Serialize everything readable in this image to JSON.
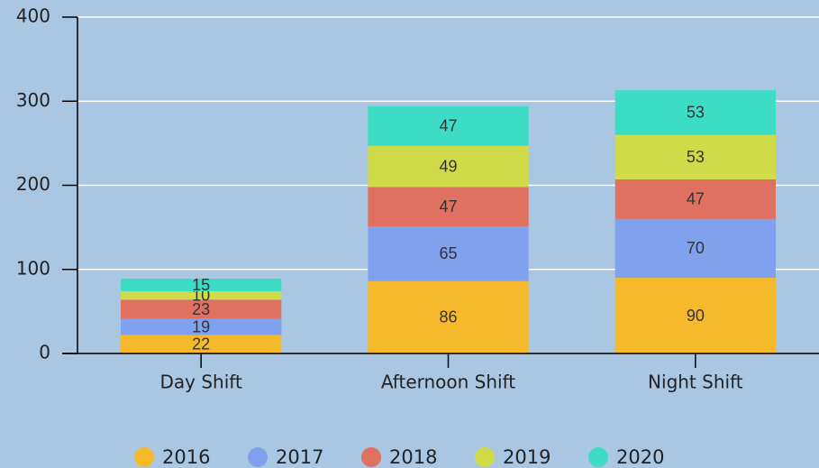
{
  "chart_data": {
    "type": "bar",
    "stacked": true,
    "categories": [
      "Day Shift",
      "Afternoon Shift",
      "Night Shift"
    ],
    "series": [
      {
        "name": "2016",
        "color": "#f6b92b",
        "values": [
          22,
          86,
          90
        ]
      },
      {
        "name": "2017",
        "color": "#7fa1ee",
        "values": [
          19,
          65,
          70
        ]
      },
      {
        "name": "2018",
        "color": "#e07060",
        "values": [
          23,
          47,
          47
        ]
      },
      {
        "name": "2019",
        "color": "#cfdb48",
        "values": [
          10,
          49,
          53
        ]
      },
      {
        "name": "2020",
        "color": "#3ddcc4",
        "values": [
          15,
          47,
          53
        ]
      }
    ],
    "ylim": [
      0,
      400
    ],
    "yticks": [
      0,
      100,
      200,
      300,
      400
    ],
    "grid": true,
    "legend": "bottom"
  }
}
